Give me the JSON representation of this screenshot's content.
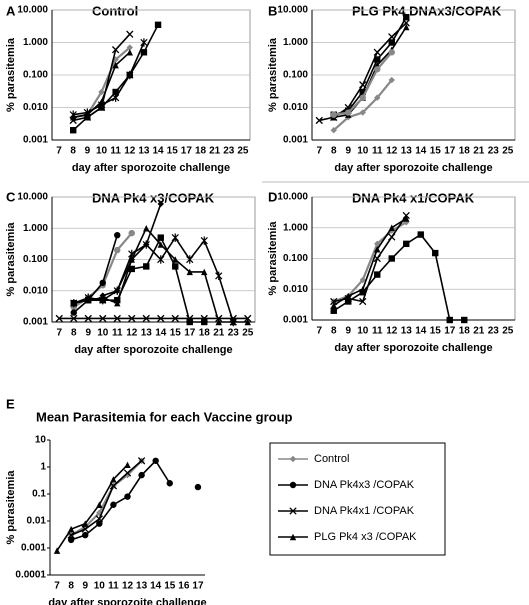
{
  "chart_data": [
    {
      "type": "line",
      "panel": "A",
      "title": "Control",
      "y_label": "% parasitemia",
      "x_label": "day after sporozoite challenge",
      "log": true,
      "grid": true,
      "ylim": [
        0.001,
        10
      ],
      "yticks": [
        0.001,
        {
          "value": 0.01,
          "label": "0.010"
        },
        {
          "value": 0.1,
          "label": "0.100"
        },
        {
          "value": 1,
          "label": "1.000"
        },
        {
          "value": 10,
          "label": "10.000"
        }
      ],
      "categories": [
        "7",
        "8",
        "9",
        "10",
        "11",
        "12",
        "13",
        "14",
        "15",
        "17",
        "18",
        "21",
        "23",
        "25"
      ],
      "series": [
        {
          "color": "#888888",
          "marker": "diamond",
          "values": [
            null,
            0.005,
            0.006,
            0.03,
            0.3,
            0.7,
            null,
            null,
            null,
            null,
            null,
            null,
            null,
            null
          ]
        },
        {
          "color": "#000000",
          "marker": "square",
          "values": [
            null,
            0.002,
            0.005,
            0.01,
            0.03,
            0.1,
            0.5,
            3.5,
            null,
            null,
            null,
            null,
            null,
            null
          ]
        },
        {
          "color": "#000000",
          "marker": "x",
          "values": [
            null,
            0.004,
            0.005,
            0.01,
            0.6,
            1.8,
            null,
            null,
            null,
            null,
            null,
            null,
            null,
            null
          ]
        },
        {
          "color": "#000000",
          "marker": "star",
          "values": [
            null,
            0.006,
            0.007,
            0.012,
            0.02,
            0.1,
            1.0,
            null,
            null,
            null,
            null,
            null,
            null,
            null
          ]
        },
        {
          "color": "#000000",
          "marker": "triangle",
          "values": [
            null,
            0.005,
            0.006,
            0.015,
            0.2,
            0.5,
            null,
            null,
            null,
            null,
            null,
            null,
            null,
            null
          ]
        }
      ]
    },
    {
      "type": "line",
      "panel": "B",
      "title": "PLG Pk4 DNAx3/COPAK",
      "y_label": "% parasitemia",
      "x_label": "day after sporozoite challenge",
      "log": true,
      "grid": true,
      "ylim": [
        0.001,
        10
      ],
      "yticks": [
        0.001,
        {
          "value": 0.01,
          "label": "0.010"
        },
        {
          "value": 0.1,
          "label": "0.100"
        },
        {
          "value": 1,
          "label": "1.000"
        },
        {
          "value": 10,
          "label": "10.000"
        }
      ],
      "categories": [
        "7",
        "8",
        "9",
        "10",
        "11",
        "12",
        "13",
        "14",
        "15",
        "17",
        "18",
        "21",
        "23",
        "25"
      ],
      "series": [
        {
          "color": "#000000",
          "marker": "x",
          "values": [
            0.004,
            0.005,
            0.01,
            0.05,
            0.5,
            1.5,
            4,
            null,
            null,
            null,
            null,
            null,
            null,
            null
          ]
        },
        {
          "color": "#888888",
          "marker": "diamond",
          "values": [
            null,
            0.002,
            0.005,
            0.007,
            0.02,
            0.07,
            null,
            null,
            null,
            null,
            null,
            null,
            null,
            null
          ]
        },
        {
          "color": "#000000",
          "marker": "square",
          "values": [
            null,
            0.006,
            0.008,
            0.03,
            0.3,
            1,
            6,
            null,
            null,
            null,
            null,
            null,
            null,
            null
          ]
        },
        {
          "color": "#000000",
          "marker": "triangle",
          "values": [
            null,
            0.005,
            0.006,
            0.02,
            0.2,
            0.6,
            3,
            null,
            null,
            null,
            null,
            null,
            null,
            null
          ]
        },
        {
          "color": "#888888",
          "marker": "circle",
          "values": [
            null,
            0.006,
            0.007,
            0.02,
            0.15,
            0.5,
            null,
            null,
            null,
            null,
            null,
            null,
            null,
            null
          ]
        }
      ]
    },
    {
      "type": "line",
      "panel": "C",
      "title": "DNA Pk4 x3/COPAK",
      "y_label": "% parasitemia",
      "x_label": "day after sporozoite challenge",
      "log": true,
      "grid": true,
      "ylim": [
        0.001,
        10
      ],
      "yticks": [
        0.001,
        {
          "value": 0.01,
          "label": "0.010"
        },
        {
          "value": 0.1,
          "label": "0.100"
        },
        {
          "value": 1,
          "label": "1.000"
        },
        {
          "value": 10,
          "label": "10.000"
        }
      ],
      "categories": [
        "7",
        "8",
        "9",
        "10",
        "11",
        "12",
        "13",
        "14",
        "15",
        "17",
        "18",
        "21",
        "23",
        "25"
      ],
      "series": [
        {
          "color": "#888888",
          "marker": "circle",
          "values": [
            null,
            0.003,
            0.006,
            0.015,
            0.2,
            0.7,
            null,
            null,
            null,
            null,
            null,
            null,
            null,
            null
          ]
        },
        {
          "color": "#000000",
          "marker": "square",
          "values": [
            null,
            0.004,
            0.005,
            0.005,
            0.005,
            0.05,
            0.06,
            0.5,
            0.06,
            0.001,
            0.001,
            null,
            null,
            null
          ]
        },
        {
          "color": "#000000",
          "marker": "circle",
          "values": [
            null,
            0.002,
            0.005,
            0.018,
            0.6,
            null,
            null,
            null,
            null,
            null,
            null,
            null,
            null,
            null
          ]
        },
        {
          "color": "#000000",
          "marker": "x",
          "values": [
            0.0013,
            0.0013,
            0.0013,
            0.0013,
            0.0013,
            0.0013,
            0.0013,
            0.0013,
            0.0013,
            0.0013,
            0.0013,
            0.0013,
            0.0013,
            0.0013
          ]
        },
        {
          "color": "#000000",
          "marker": "star",
          "values": [
            null,
            0.004,
            0.006,
            0.005,
            0.01,
            0.15,
            0.3,
            0.1,
            0.5,
            0.1,
            0.4,
            0.03,
            0.001,
            null
          ]
        },
        {
          "color": "#000000",
          "marker": "triangle",
          "values": [
            null,
            0.004,
            0.005,
            0.006,
            0.004,
            0.1,
            1.0,
            0.3,
            0.1,
            0.04,
            0.04,
            0.001,
            0.001,
            0.001
          ]
        },
        {
          "color": "#000000",
          "marker": "diamond",
          "values": [
            null,
            null,
            null,
            0.007,
            0.01,
            0.1,
            0.3,
            6,
            null,
            null,
            null,
            null,
            null,
            null
          ]
        }
      ]
    },
    {
      "type": "line",
      "panel": "D",
      "title": "DNA Pk4 x1/COPAK",
      "y_label": "% parasitemia",
      "x_label": "day after sporozoite challenge",
      "log": true,
      "grid": true,
      "ylim": [
        0.001,
        10
      ],
      "yticks": [
        0.001,
        {
          "value": 0.01,
          "label": "0.010"
        },
        {
          "value": 0.1,
          "label": "0.100"
        },
        {
          "value": 1,
          "label": "1.000"
        },
        {
          "value": 10,
          "label": "10.000"
        }
      ],
      "categories": [
        "7",
        "8",
        "9",
        "10",
        "11",
        "12",
        "13",
        "14",
        "15",
        "17",
        "18",
        "21",
        "23",
        "25"
      ],
      "series": [
        {
          "color": "#888888",
          "marker": "diamond",
          "values": [
            null,
            0.004,
            0.006,
            0.02,
            0.3,
            0.8,
            1.5,
            null,
            null,
            null,
            null,
            null,
            null,
            null
          ]
        },
        {
          "color": "#000000",
          "marker": "square",
          "values": [
            null,
            0.002,
            0.004,
            0.008,
            0.03,
            0.1,
            0.3,
            0.6,
            0.15,
            0.001,
            0.001,
            null,
            null,
            null
          ]
        },
        {
          "color": "#000000",
          "marker": "x",
          "values": [
            null,
            0.004,
            0.005,
            0.004,
            0.1,
            0.5,
            2.5,
            null,
            null,
            null,
            null,
            null,
            null,
            null
          ]
        },
        {
          "color": "#000000",
          "marker": "triangle",
          "values": [
            null,
            0.003,
            0.006,
            0.01,
            0.2,
            1,
            2,
            null,
            null,
            null,
            null,
            null,
            null,
            null
          ]
        }
      ]
    },
    {
      "type": "line",
      "panel": "E",
      "title": "Mean Parasitemia for each Vaccine group",
      "y_label": "% parasitemia",
      "x_label": "day after sporozoite challenge",
      "log": true,
      "grid": false,
      "legend": "right",
      "ylim": [
        0.0001,
        10
      ],
      "yticks": [
        0.0001,
        0.001,
        0.01,
        0.1,
        1,
        10
      ],
      "categories": [
        "7",
        "8",
        "9",
        "10",
        "11",
        "12",
        "13",
        "14",
        "15",
        "16",
        "17"
      ],
      "series": [
        {
          "name": "Control",
          "color": "#888888",
          "marker": "diamond",
          "values": [
            null,
            0.003,
            0.006,
            0.02,
            0.2,
            0.5,
            1.7,
            null,
            null,
            null,
            null
          ]
        },
        {
          "name": "DNA Pk4x3 /COPAK",
          "color": "#000000",
          "marker": "circle",
          "values": [
            null,
            0.002,
            0.003,
            0.008,
            0.04,
            0.08,
            0.5,
            1.7,
            0.25,
            null,
            0.18
          ]
        },
        {
          "name": "DNA Pk4x1 /COPAK",
          "color": "#000000",
          "marker": "x",
          "values": [
            null,
            0.003,
            0.005,
            0.012,
            0.2,
            0.6,
            1.7,
            null,
            null,
            null,
            null
          ]
        },
        {
          "name": "PLG Pk4 x3 /COPAK",
          "color": "#000000",
          "marker": "triangle",
          "values": [
            0.0008,
            0.005,
            0.008,
            0.04,
            0.35,
            1.2,
            null,
            null,
            null,
            null,
            null
          ]
        }
      ]
    }
  ]
}
